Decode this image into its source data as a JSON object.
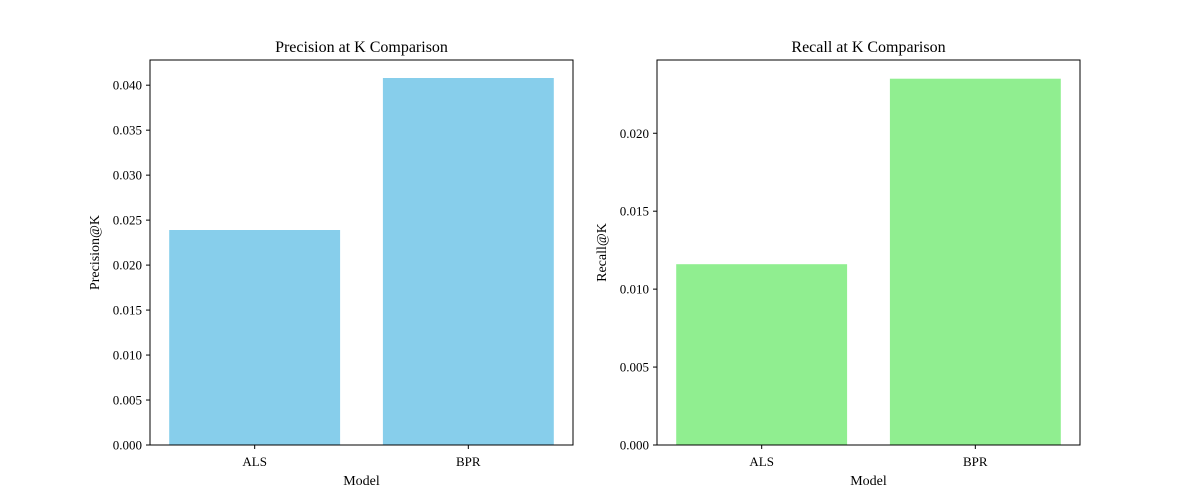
{
  "chart_data": [
    {
      "type": "bar",
      "title": "Precision at K Comparison",
      "xlabel": "Model",
      "ylabel": "Precision@K",
      "categories": [
        "ALS",
        "BPR"
      ],
      "values": [
        0.0239,
        0.0408
      ],
      "ylim": [
        0,
        0.0428
      ],
      "yticks": [
        0.0,
        0.005,
        0.01,
        0.015,
        0.02,
        0.025,
        0.03,
        0.035,
        0.04
      ],
      "ytick_labels": [
        "0.000",
        "0.005",
        "0.010",
        "0.015",
        "0.020",
        "0.025",
        "0.030",
        "0.035",
        "0.040"
      ],
      "bar_color": "#87ceeb",
      "grid": false
    },
    {
      "type": "bar",
      "title": "Recall at K Comparison",
      "xlabel": "Model",
      "ylabel": "Recall@K",
      "categories": [
        "ALS",
        "BPR"
      ],
      "values": [
        0.0116,
        0.0235
      ],
      "ylim": [
        0,
        0.0247
      ],
      "yticks": [
        0.0,
        0.005,
        0.01,
        0.015,
        0.02
      ],
      "ytick_labels": [
        "0.000",
        "0.005",
        "0.010",
        "0.015",
        "0.020"
      ],
      "bar_color": "#90ee90",
      "grid": false
    }
  ]
}
